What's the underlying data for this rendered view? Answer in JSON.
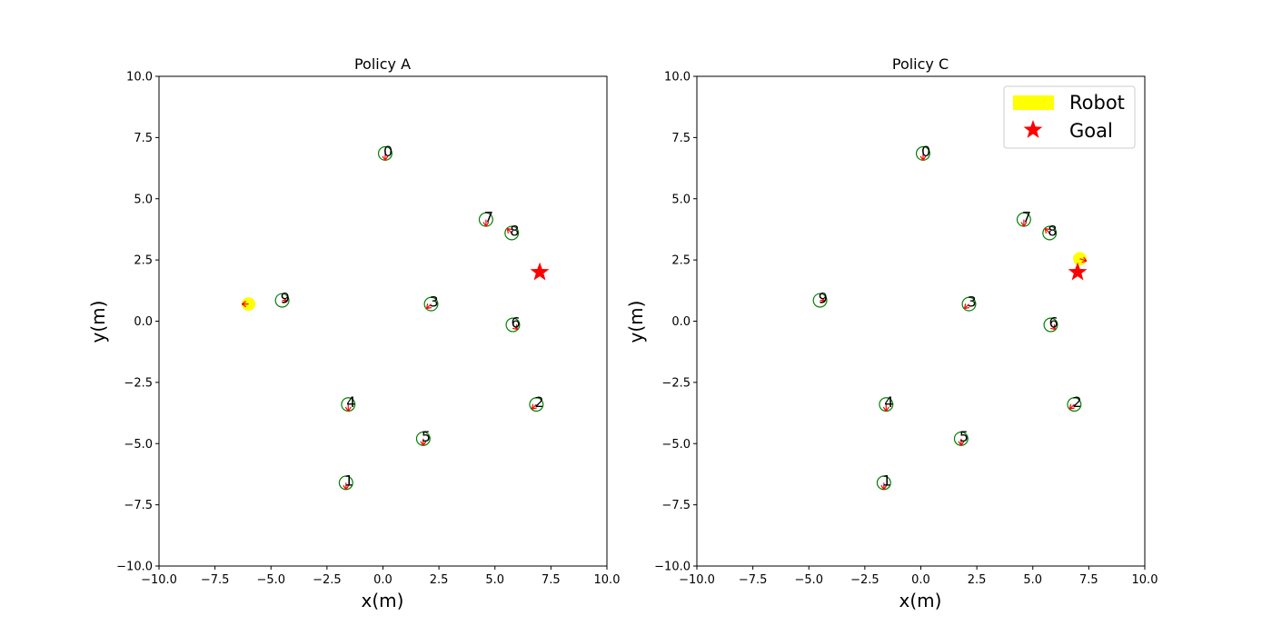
{
  "chart_data": [
    {
      "type": "scatter",
      "title": "Policy A",
      "xlabel": "x(m)",
      "ylabel": "y(m)",
      "xlim": [
        -10,
        10
      ],
      "ylim": [
        -10,
        10
      ],
      "xticks": [
        "−10.0",
        "−7.5",
        "−5.0",
        "−2.5",
        "0.0",
        "2.5",
        "5.0",
        "7.5",
        "10.0"
      ],
      "yticks": [
        "−10.0",
        "−7.5",
        "−5.0",
        "−2.5",
        "0.0",
        "2.5",
        "5.0",
        "7.5",
        "10.0"
      ],
      "grid": false,
      "legend": null,
      "humans": [
        {
          "id": "0",
          "x": 0.1,
          "y": 6.85,
          "dx": 0.0,
          "dy": -0.3
        },
        {
          "id": "1",
          "x": -1.65,
          "y": -6.6,
          "dx": 0.0,
          "dy": -0.3
        },
        {
          "id": "2",
          "x": 6.85,
          "y": -3.4,
          "dx": -0.2,
          "dy": -0.2
        },
        {
          "id": "3",
          "x": 2.15,
          "y": 0.7,
          "dx": -0.2,
          "dy": -0.2
        },
        {
          "id": "4",
          "x": -1.55,
          "y": -3.4,
          "dx": 0.0,
          "dy": -0.3
        },
        {
          "id": "5",
          "x": 1.8,
          "y": -4.8,
          "dx": 0.0,
          "dy": -0.3
        },
        {
          "id": "6",
          "x": 5.8,
          "y": -0.15,
          "dx": 0.2,
          "dy": -0.2
        },
        {
          "id": "7",
          "x": 4.6,
          "y": 4.15,
          "dx": 0.0,
          "dy": -0.3
        },
        {
          "id": "8",
          "x": 5.75,
          "y": 3.6,
          "dx": -0.2,
          "dy": 0.2
        },
        {
          "id": "9",
          "x": -4.5,
          "y": 0.85,
          "dx": 0.2,
          "dy": 0.0
        }
      ],
      "robot": {
        "x": -6.0,
        "y": 0.7,
        "dx": -0.3,
        "dy": 0.0
      },
      "goal": {
        "x": 7.0,
        "y": 2.0
      }
    },
    {
      "type": "scatter",
      "title": "Policy C",
      "xlabel": "x(m)",
      "ylabel": "y(m)",
      "xlim": [
        -10,
        10
      ],
      "ylim": [
        -10,
        10
      ],
      "xticks": [
        "−10.0",
        "−7.5",
        "−5.0",
        "−2.5",
        "0.0",
        "2.5",
        "5.0",
        "7.5",
        "10.0"
      ],
      "yticks": [
        "−10.0",
        "−7.5",
        "−5.0",
        "−2.5",
        "0.0",
        "2.5",
        "5.0",
        "7.5",
        "10.0"
      ],
      "grid": false,
      "legend": {
        "placement": "top-right",
        "entries": [
          {
            "label": "Robot",
            "color": "#ffff00"
          },
          {
            "label": "Goal",
            "color": "#ff0000"
          }
        ]
      },
      "humans": [
        {
          "id": "0",
          "x": 0.1,
          "y": 6.85,
          "dx": 0.0,
          "dy": -0.3
        },
        {
          "id": "1",
          "x": -1.65,
          "y": -6.6,
          "dx": 0.0,
          "dy": -0.3
        },
        {
          "id": "2",
          "x": 6.85,
          "y": -3.4,
          "dx": -0.2,
          "dy": -0.2
        },
        {
          "id": "3",
          "x": 2.15,
          "y": 0.7,
          "dx": -0.2,
          "dy": -0.2
        },
        {
          "id": "4",
          "x": -1.55,
          "y": -3.4,
          "dx": 0.0,
          "dy": -0.3
        },
        {
          "id": "5",
          "x": 1.8,
          "y": -4.8,
          "dx": 0.0,
          "dy": -0.3
        },
        {
          "id": "6",
          "x": 5.8,
          "y": -0.15,
          "dx": 0.2,
          "dy": -0.2
        },
        {
          "id": "7",
          "x": 4.6,
          "y": 4.15,
          "dx": 0.0,
          "dy": -0.3
        },
        {
          "id": "8",
          "x": 5.75,
          "y": 3.6,
          "dx": -0.2,
          "dy": 0.2
        },
        {
          "id": "9",
          "x": -4.5,
          "y": 0.85,
          "dx": 0.2,
          "dy": 0.0
        }
      ],
      "robot": {
        "x": 7.1,
        "y": 2.55,
        "dx": 0.3,
        "dy": -0.1
      },
      "goal": {
        "x": 7.0,
        "y": 2.0
      }
    }
  ],
  "colors": {
    "human_edge": "#008000",
    "heading": "#ff0000",
    "robot": "#ffff00",
    "goal": "#ff0000",
    "axes": "#000000"
  }
}
